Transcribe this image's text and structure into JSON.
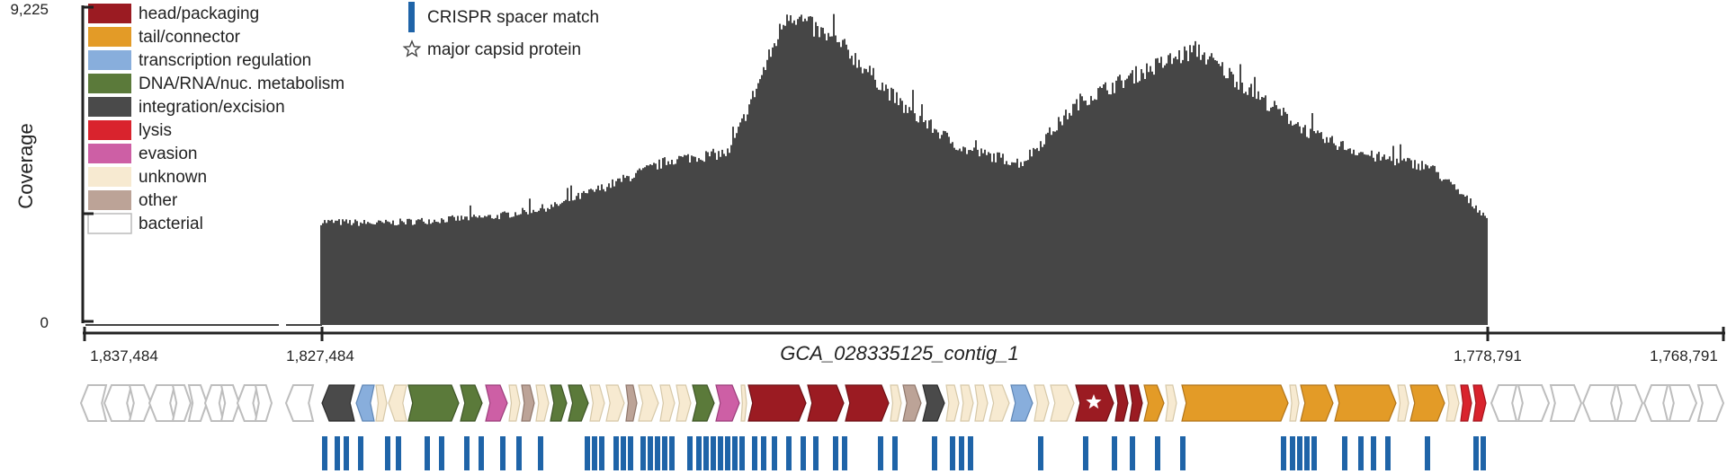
{
  "figure": {
    "y_axis_label": "Coverage",
    "y_tick_labels": [
      "9,225",
      "0"
    ],
    "coordinate_labels": [
      "1,837,484",
      "1,827,484",
      "1,778,791",
      "1,768,791"
    ],
    "contig_name": "GCA_028335125_contig_1"
  },
  "legend": {
    "categories": [
      {
        "key": "head",
        "label": "head/packaging",
        "color": "#9b1b22"
      },
      {
        "key": "tail",
        "label": "tail/connector",
        "color": "#e39b27"
      },
      {
        "key": "treg",
        "label": "transcription regulation",
        "color": "#88aedc"
      },
      {
        "key": "dna",
        "label": "DNA/RNA/nuc. metabolism",
        "color": "#5b7a3a"
      },
      {
        "key": "integ",
        "label": "integration/excision",
        "color": "#4a4a4a"
      },
      {
        "key": "lysis",
        "label": "lysis",
        "color": "#d9232d"
      },
      {
        "key": "evasion",
        "label": "evasion",
        "color": "#cd5fa5"
      },
      {
        "key": "unknown",
        "label": "unknown",
        "color": "#f7ead1"
      },
      {
        "key": "other",
        "label": "other",
        "color": "#bca397"
      },
      {
        "key": "bacterial",
        "label": "bacterial",
        "color": "#ffffff"
      }
    ],
    "markers": [
      {
        "label": "CRISPR spacer match",
        "color": "#1f64a8"
      },
      {
        "label": "major capsid protein",
        "icon": "star-icon"
      }
    ]
  },
  "chart_data": {
    "type": "area",
    "ylabel": "Coverage",
    "ylim": [
      0,
      9225
    ],
    "x_tick_labels": [
      "1,837,484",
      "1,827,484",
      "1,778,791",
      "1,768,791"
    ],
    "x": [
      0.0,
      0.05,
      0.1,
      0.15,
      0.2,
      0.25,
      0.3,
      0.35,
      0.4,
      0.45,
      0.5,
      0.55,
      0.6,
      0.65,
      0.7,
      0.75,
      0.8,
      0.85,
      0.9,
      0.95,
      1.0
    ],
    "values": [
      3000,
      2950,
      3050,
      3150,
      3450,
      4100,
      4800,
      5000,
      9100,
      8000,
      6300,
      5100,
      4700,
      6500,
      7300,
      8000,
      6700,
      5500,
      4900,
      4600,
      3100
    ]
  }
}
